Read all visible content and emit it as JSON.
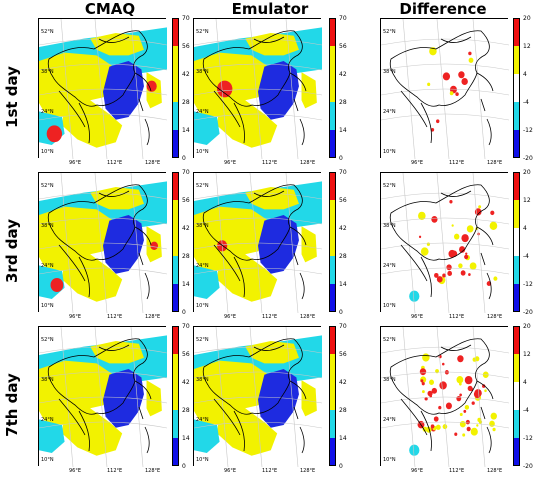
{
  "column_titles": [
    "CMAQ",
    "Emulator",
    "Difference"
  ],
  "row_labels": [
    "1st day",
    "3rd day",
    "7th day"
  ],
  "lat_labels": [
    "52°N",
    "38°N",
    "24°N",
    "10°N"
  ],
  "lon_labels": [
    "96°E",
    "112°E",
    "128°E"
  ],
  "colorbars": {
    "value": {
      "ticks": [
        "70",
        "56",
        "42",
        "28",
        "14",
        "0"
      ],
      "colors": [
        "#ee1111",
        "#f2f200",
        "#f2f200",
        "#22d8e8",
        "#1010e8"
      ]
    },
    "difference": {
      "ticks": [
        "20",
        "12",
        "4",
        "-4",
        "-12",
        "-20"
      ],
      "colors": [
        "#ee1111",
        "#f2f200",
        "#ffffff",
        "#22d8e8",
        "#1010e8"
      ]
    }
  },
  "palette": {
    "white": "#ffffff",
    "cyan": "#22d8e8",
    "yellow": "#f2f200",
    "blue": "#1e2be0",
    "red": "#ee2222",
    "border": "#000000",
    "grid": "#c8c8c8"
  }
}
